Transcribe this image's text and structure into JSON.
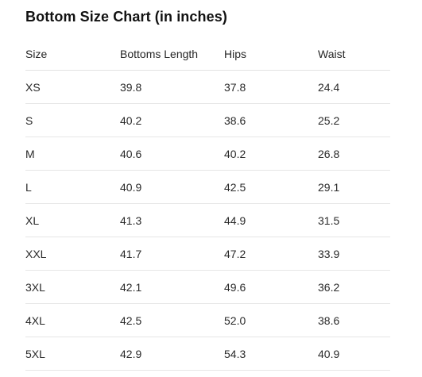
{
  "title": "Bottom Size Chart (in inches)",
  "table": {
    "headers": [
      "Size",
      "Bottoms Length",
      "Hips",
      "Waist"
    ],
    "rows": [
      [
        "XS",
        "39.8",
        "37.8",
        "24.4"
      ],
      [
        "S",
        "40.2",
        "38.6",
        "25.2"
      ],
      [
        "M",
        "40.6",
        "40.2",
        "26.8"
      ],
      [
        "L",
        "40.9",
        "42.5",
        "29.1"
      ],
      [
        "XL",
        "41.3",
        "44.9",
        "31.5"
      ],
      [
        "XXL",
        "41.7",
        "47.2",
        "33.9"
      ],
      [
        "3XL",
        "42.1",
        "49.6",
        "36.2"
      ],
      [
        "4XL",
        "42.5",
        "52.0",
        "38.6"
      ],
      [
        "5XL",
        "42.9",
        "54.3",
        "40.9"
      ]
    ]
  }
}
